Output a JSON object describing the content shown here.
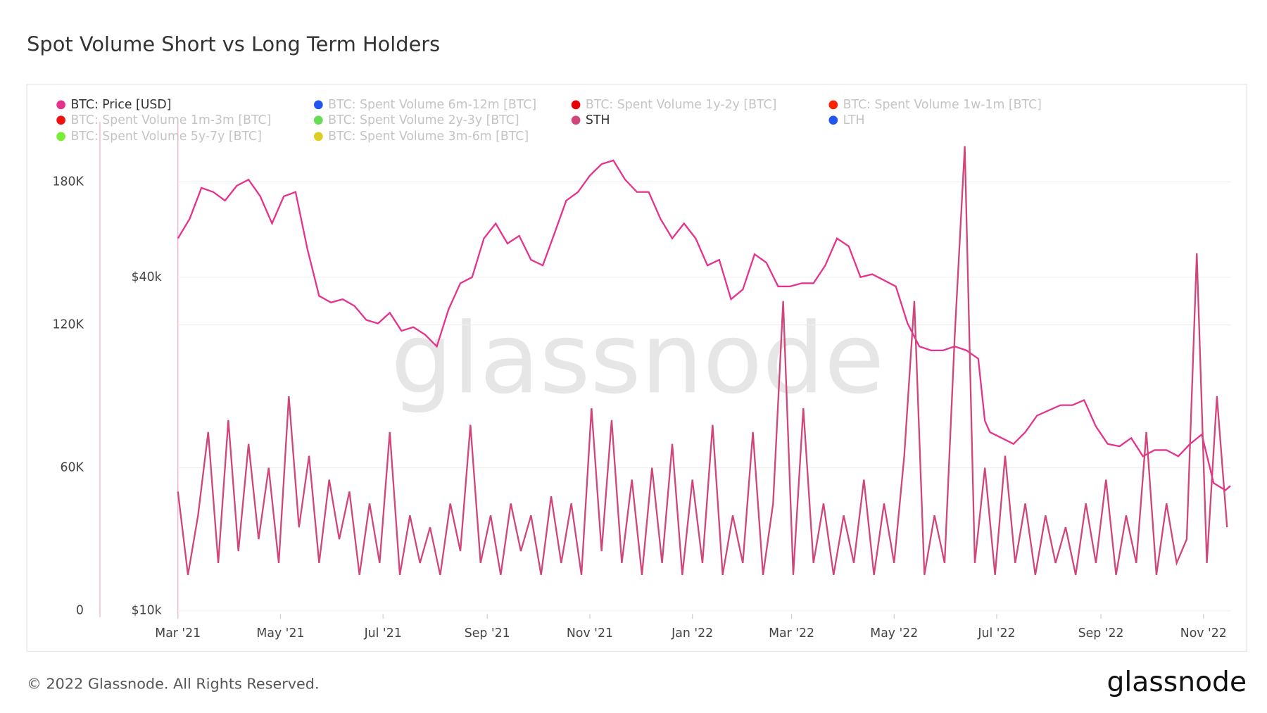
{
  "chart_data": {
    "type": "line",
    "title": "Spot Volume Short vs Long Term Holders",
    "watermark": "glassnode",
    "footer": "© 2022 Glassnode. All Rights Reserved.",
    "logo": "glassnode",
    "xlim": [
      0,
      626
    ],
    "xticks": [
      {
        "value": 0,
        "label": "Mar '21"
      },
      {
        "value": 61,
        "label": "May '21"
      },
      {
        "value": 122,
        "label": "Jul '21"
      },
      {
        "value": 184,
        "label": "Sep '21"
      },
      {
        "value": 245,
        "label": "Nov '21"
      },
      {
        "value": 306,
        "label": "Jan '22"
      },
      {
        "value": 365,
        "label": "Mar '22"
      },
      {
        "value": 426,
        "label": "May '22"
      },
      {
        "value": 487,
        "label": "Jul '22"
      },
      {
        "value": 549,
        "label": "Sep '22"
      },
      {
        "value": 610,
        "label": "Nov '22"
      }
    ],
    "ylim": [
      0,
      210000
    ],
    "yticks": [
      0,
      {
        "value": 60000,
        "label": "60K"
      },
      {
        "value": 120000,
        "label": "120K"
      },
      {
        "value": 180000,
        "label": "180K"
      }
    ],
    "y2lim": [
      10000,
      80000
    ],
    "y2log": true,
    "y2ticks": [
      {
        "value": 10000,
        "label": "$10k"
      },
      {
        "value": 40000,
        "label": "$40k"
      }
    ],
    "grid": true,
    "series": [
      {
        "name": "BTC: Price [USD]",
        "color": "#e5338d",
        "visible": true,
        "axis": "y2",
        "x": [
          0,
          7,
          14,
          21,
          28,
          35,
          42,
          49,
          56,
          63,
          70,
          77,
          84,
          91,
          98,
          105,
          112,
          119,
          126,
          133,
          140,
          147,
          154,
          161,
          168,
          175,
          182,
          189,
          196,
          203,
          210,
          217,
          224,
          231,
          238,
          245,
          252,
          259,
          266,
          273,
          280,
          287,
          294,
          301,
          308,
          315,
          322,
          329,
          336,
          343,
          350,
          357,
          364,
          371,
          378,
          385,
          392,
          399,
          406,
          413,
          420,
          427,
          434,
          441,
          448,
          455,
          462,
          469,
          476,
          480,
          483,
          490,
          497,
          504,
          511,
          518,
          525,
          532,
          539,
          546,
          553,
          560,
          567,
          574,
          581,
          588,
          595,
          602,
          609,
          616,
          623,
          626
        ],
        "values": [
          47000,
          51000,
          58000,
          57000,
          55000,
          58500,
          60000,
          56000,
          50000,
          56000,
          57000,
          45000,
          37000,
          36000,
          36500,
          35500,
          33500,
          33000,
          34500,
          32000,
          32500,
          31500,
          30000,
          35000,
          39000,
          40000,
          47000,
          50000,
          46000,
          47500,
          43000,
          42000,
          48000,
          55000,
          57000,
          61000,
          64000,
          65000,
          60000,
          57000,
          57000,
          51000,
          47000,
          50000,
          47000,
          42000,
          43000,
          36500,
          38000,
          44000,
          42500,
          38500,
          38500,
          39000,
          39000,
          42000,
          47000,
          45500,
          40000,
          40500,
          39500,
          38500,
          33000,
          30000,
          29500,
          29500,
          30000,
          29500,
          28500,
          22000,
          21000,
          20500,
          20000,
          21000,
          22500,
          23000,
          23500,
          23500,
          24000,
          21500,
          20000,
          19800,
          20500,
          19000,
          19500,
          19500,
          19000,
          20000,
          20800,
          17000,
          16500,
          16800
        ]
      },
      {
        "name": "BTC: Spent Volume 6m-12m [BTC]",
        "color": "#2255ee",
        "visible": false
      },
      {
        "name": "BTC: Spent Volume 1y-2y [BTC]",
        "color": "#e80000",
        "visible": false
      },
      {
        "name": "BTC: Spent Volume 1w-1m [BTC]",
        "color": "#ff2200",
        "visible": false
      },
      {
        "name": "BTC: Spent Volume 1m-3m [BTC]",
        "color": "#ee1111",
        "visible": false
      },
      {
        "name": "BTC: Spent Volume 2y-3y [BTC]",
        "color": "#66dd55",
        "visible": false
      },
      {
        "name": "STH",
        "color": "#d0457a",
        "visible": true,
        "x": [
          0,
          6,
          12,
          18,
          24,
          30,
          36,
          42,
          48,
          54,
          60,
          66,
          72,
          78,
          84,
          90,
          96,
          102,
          108,
          114,
          120,
          126,
          132,
          138,
          144,
          150,
          156,
          162,
          168,
          174,
          180,
          186,
          192,
          198,
          204,
          210,
          216,
          222,
          228,
          234,
          240,
          246,
          252,
          258,
          264,
          270,
          276,
          282,
          288,
          294,
          300,
          306,
          312,
          318,
          324,
          330,
          336,
          342,
          348,
          354,
          360,
          366,
          372,
          378,
          384,
          390,
          396,
          402,
          408,
          414,
          420,
          426,
          432,
          438,
          444,
          450,
          456,
          462,
          468,
          474,
          480,
          486,
          492,
          498,
          504,
          510,
          516,
          522,
          528,
          534,
          540,
          546,
          552,
          558,
          564,
          570,
          576,
          582,
          588,
          594,
          600,
          606,
          612,
          618,
          624
        ],
        "values": [
          50000,
          15000,
          40000,
          75000,
          20000,
          80000,
          25000,
          70000,
          30000,
          60000,
          20000,
          90000,
          35000,
          65000,
          20000,
          55000,
          30000,
          50000,
          15000,
          45000,
          20000,
          75000,
          15000,
          40000,
          20000,
          35000,
          15000,
          45000,
          25000,
          78000,
          20000,
          40000,
          15000,
          45000,
          25000,
          40000,
          15000,
          48000,
          20000,
          45000,
          15000,
          85000,
          25000,
          80000,
          20000,
          55000,
          15000,
          60000,
          20000,
          70000,
          15000,
          55000,
          20000,
          78000,
          15000,
          40000,
          20000,
          75000,
          15000,
          45000,
          130000,
          15000,
          85000,
          20000,
          45000,
          15000,
          40000,
          20000,
          55000,
          15000,
          45000,
          20000,
          65000,
          130000,
          15000,
          40000,
          20000,
          115000,
          195000,
          20000,
          60000,
          15000,
          65000,
          20000,
          45000,
          15000,
          40000,
          20000,
          35000,
          15000,
          45000,
          20000,
          55000,
          15000,
          40000,
          20000,
          75000,
          15000,
          45000,
          20000,
          30000,
          150000,
          20000,
          90000,
          35000
        ]
      },
      {
        "name": "LTH",
        "color": "#2255ee",
        "visible": false
      },
      {
        "name": "BTC: Spent Volume 5y-7y [BTC]",
        "color": "#77ee33",
        "visible": false
      },
      {
        "name": "BTC: Spent Volume 3m-6m [BTC]",
        "color": "#ddcc22",
        "visible": false
      }
    ]
  }
}
